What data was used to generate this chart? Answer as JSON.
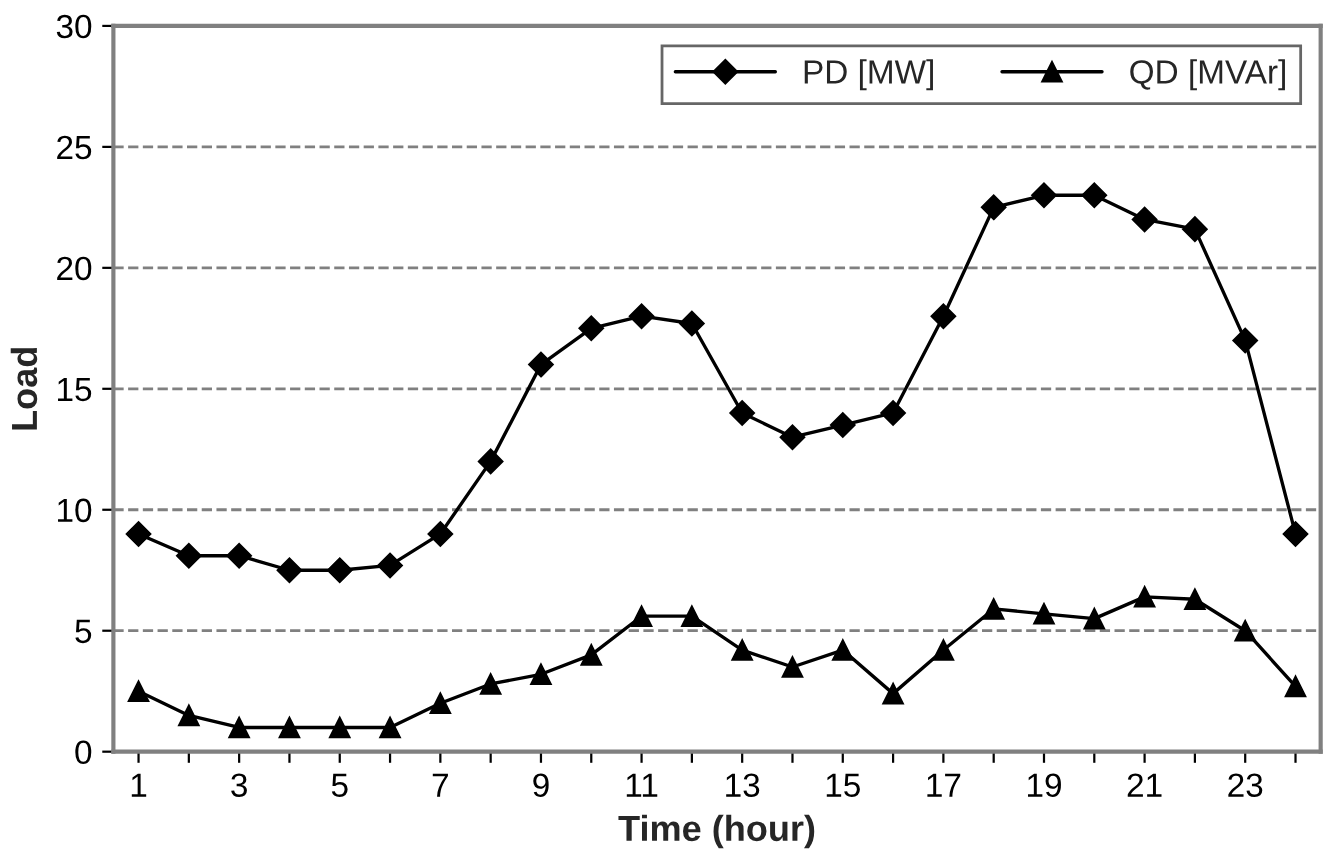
{
  "chart_data": {
    "type": "line",
    "xlabel": "Time (hour)",
    "ylabel": "Load",
    "x": [
      1,
      2,
      3,
      4,
      5,
      6,
      7,
      8,
      9,
      10,
      11,
      12,
      13,
      14,
      15,
      16,
      17,
      18,
      19,
      20,
      21,
      22,
      23,
      24
    ],
    "series": [
      {
        "name": "PD [MW]",
        "color": "#000000",
        "marker": "diamond",
        "values": [
          9,
          8.1,
          8.1,
          7.5,
          7.5,
          7.7,
          9,
          12,
          16,
          17.5,
          18,
          17.7,
          14,
          13,
          13.5,
          14,
          18,
          22.5,
          23,
          23,
          22,
          21.6,
          17,
          9
        ]
      },
      {
        "name": "QD [MVAr]",
        "color": "#000000",
        "marker": "triangle",
        "values": [
          2.5,
          1.5,
          1,
          1,
          1,
          1,
          2,
          2.8,
          3.2,
          4,
          5.6,
          5.6,
          4.2,
          3.5,
          4.2,
          2.4,
          4.2,
          5.9,
          5.7,
          5.5,
          6.4,
          6.3,
          5,
          2.7
        ]
      }
    ],
    "xlim": [
      0.5,
      24.5
    ],
    "xticks": [
      1,
      {
        "value": 2,
        "label": null
      },
      3,
      {
        "value": 4,
        "label": null
      },
      5,
      {
        "value": 6,
        "label": null
      },
      7,
      {
        "value": 8,
        "label": null
      },
      9,
      {
        "value": 10,
        "label": null
      },
      11,
      {
        "value": 12,
        "label": null
      },
      13,
      {
        "value": 14,
        "label": null
      },
      15,
      {
        "value": 16,
        "label": null
      },
      17,
      {
        "value": 18,
        "label": null
      },
      19,
      {
        "value": 20,
        "label": null
      },
      21,
      {
        "value": 22,
        "label": null
      },
      23,
      {
        "value": 24,
        "label": null
      }
    ],
    "ylim": [
      0,
      30
    ],
    "yticks": [
      0,
      5,
      10,
      15,
      20,
      25,
      30
    ],
    "grid": "y",
    "legend": "top right",
    "line_style": "solid"
  }
}
